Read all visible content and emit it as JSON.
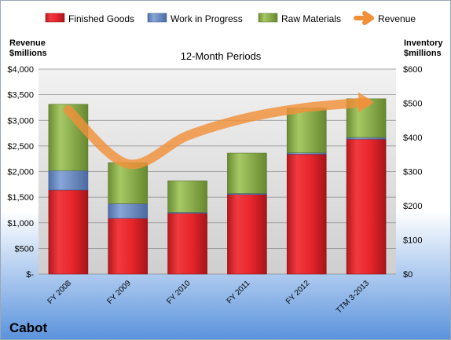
{
  "company": "Cabot",
  "chart_data": {
    "type": "bar",
    "stacked": true,
    "title": "12-Month Periods",
    "categories": [
      "FY 2008",
      "FY 2009",
      "FY 2010",
      "FY 2011",
      "FY 2012",
      "TTM 3-2013"
    ],
    "left_axis": {
      "label_line1": "Revenue",
      "label_line2": "$millions",
      "ylim": [
        0,
        4000
      ],
      "ticks": [
        0,
        500,
        1000,
        1500,
        2000,
        2500,
        3000,
        3500,
        4000
      ],
      "tick_labels": [
        "$-",
        "$500",
        "$1,000",
        "$1,500",
        "$2,000",
        "$2,500",
        "$3,000",
        "$3,500",
        "$4,000"
      ]
    },
    "right_axis": {
      "label_line1": "Inventory",
      "label_line2": "$millions",
      "ylim": [
        0,
        600
      ],
      "ticks": [
        0,
        100,
        200,
        300,
        400,
        500,
        600
      ],
      "tick_labels": [
        "$0",
        "$100",
        "$200",
        "$300",
        "$400",
        "$500",
        "$600"
      ]
    },
    "series": [
      {
        "name": "Finished Goods",
        "axis": "right",
        "color": "#e8262c",
        "values": [
          246,
          163,
          178,
          233,
          351,
          395
        ]
      },
      {
        "name": "Work in Progress",
        "axis": "right",
        "color": "#6c8ecb",
        "values": [
          57,
          43,
          3,
          3,
          4,
          5
        ]
      },
      {
        "name": "Raw Materials",
        "axis": "right",
        "color": "#8fb44c",
        "values": [
          194,
          120,
          92,
          118,
          131,
          113
        ]
      },
      {
        "name": "Revenue",
        "axis": "left",
        "type": "line",
        "color": "#f0913a",
        "values": [
          3200,
          2150,
          2700,
          3050,
          3250,
          3350
        ]
      }
    ],
    "grid": true,
    "legend_position": "top"
  }
}
